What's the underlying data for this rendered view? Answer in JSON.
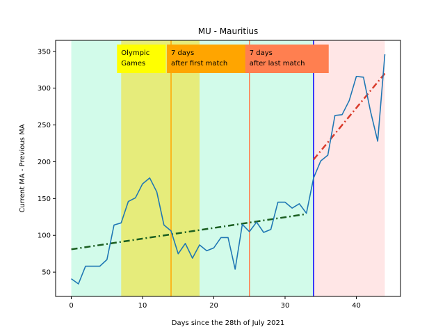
{
  "chart_data": {
    "type": "line",
    "title": "MU - Mauritius",
    "xlabel": "Days since the 28th of July 2021",
    "ylabel": "Current MA - Previous MA",
    "xlim": [
      -2.2,
      46.2
    ],
    "ylim": [
      17,
      365
    ],
    "xticks": [
      0,
      10,
      20,
      30,
      40
    ],
    "yticks": [
      50,
      100,
      150,
      200,
      250,
      300,
      350
    ],
    "series": [
      {
        "color": "#1f77b4",
        "x": [
          0,
          1,
          2,
          3,
          4,
          5,
          6,
          7,
          8,
          9,
          10,
          11,
          12,
          13,
          14,
          15,
          16,
          17,
          18,
          19,
          20,
          21,
          22,
          23,
          24,
          25,
          26,
          27,
          28,
          29,
          30,
          31,
          32,
          33,
          34,
          35,
          36,
          37,
          38,
          39,
          40,
          41,
          42,
          43,
          44
        ],
        "y": [
          41,
          34,
          58,
          58,
          58,
          67,
          114,
          117,
          146,
          151,
          170,
          178,
          159,
          114,
          106,
          75,
          89,
          69,
          87,
          79,
          83,
          97,
          97,
          54,
          115,
          105,
          118,
          104,
          108,
          145,
          145,
          137,
          143,
          130,
          178,
          201,
          209,
          263,
          264,
          283,
          316,
          315,
          268,
          228,
          346
        ]
      }
    ],
    "trend_lines": [
      {
        "color": "#1a5e20",
        "x": [
          0,
          33
        ],
        "y": [
          81,
          129
        ]
      },
      {
        "color": "#d93b2b",
        "x": [
          34,
          44
        ],
        "y": [
          203,
          320
        ]
      }
    ],
    "shaded_regions": [
      {
        "x": [
          0,
          34
        ],
        "color": "#d2fbea"
      },
      {
        "x": [
          7,
          18
        ],
        "color": "#e6ec7b"
      },
      {
        "x": [
          34,
          44
        ],
        "color": "#ffe6e6"
      }
    ],
    "vertical_lines": [
      {
        "x": 14,
        "color": "#ffa500"
      },
      {
        "x": 25,
        "color": "#ff7f50"
      },
      {
        "x": 34,
        "color": "#0000ff"
      }
    ],
    "annotations": [
      {
        "x": 7,
        "lines": [
          "Olympic",
          "Games"
        ],
        "color": "#ffff00"
      },
      {
        "x": 14,
        "lines": [
          "7 days",
          "after first match"
        ],
        "color": "#ffa500"
      },
      {
        "x": 25,
        "lines": [
          "7 days",
          "after last match"
        ],
        "color": "#ff7f50"
      }
    ]
  }
}
